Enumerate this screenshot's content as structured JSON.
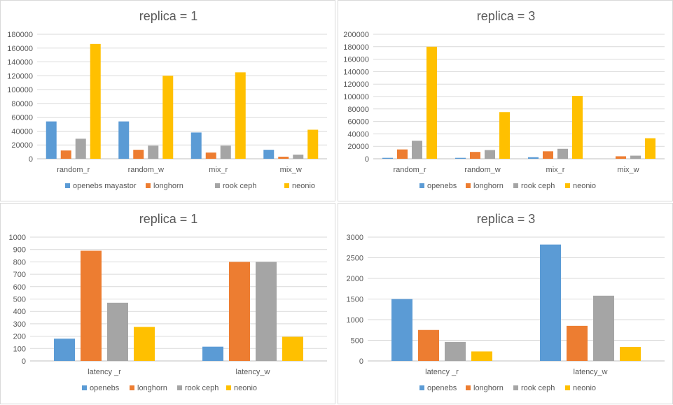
{
  "chart_data": [
    {
      "type": "bar",
      "title": "replica = 1",
      "categories": [
        "random_r",
        "random_w",
        "mix_r",
        "mix_w"
      ],
      "series": [
        {
          "name": "openebs mayastor",
          "color": "#5b9bd5",
          "values": [
            54000,
            54000,
            38000,
            13000
          ]
        },
        {
          "name": "longhorn",
          "color": "#ed7d31",
          "values": [
            12000,
            13000,
            9000,
            3000
          ]
        },
        {
          "name": "rook ceph",
          "color": "#a5a5a5",
          "values": [
            29000,
            19000,
            19000,
            6000
          ]
        },
        {
          "name": "neonio",
          "color": "#ffc000",
          "values": [
            166000,
            120000,
            125000,
            42000
          ]
        }
      ],
      "yticks": [
        "0",
        "20000",
        "40000",
        "60000",
        "80000",
        "100000",
        "120000",
        "140000",
        "160000",
        "180000"
      ],
      "ylim": [
        0,
        180000
      ],
      "xlabel": "",
      "ylabel": "",
      "legend": "bottom"
    },
    {
      "type": "bar",
      "title": "replica = 3",
      "categories": [
        "random_r",
        "random_w",
        "mix_r",
        "mix_w"
      ],
      "series": [
        {
          "name": "openebs",
          "color": "#5b9bd5",
          "values": [
            1500,
            1500,
            2500,
            0
          ]
        },
        {
          "name": "longhorn",
          "color": "#ed7d31",
          "values": [
            15000,
            11000,
            12000,
            4000
          ]
        },
        {
          "name": "rook ceph",
          "color": "#a5a5a5",
          "values": [
            29000,
            14000,
            16000,
            5000
          ]
        },
        {
          "name": "neonio",
          "color": "#ffc000",
          "values": [
            180000,
            75000,
            101000,
            33000
          ]
        }
      ],
      "yticks": [
        "0",
        "20000",
        "40000",
        "60000",
        "80000",
        "100000",
        "120000",
        "140000",
        "160000",
        "180000",
        "200000"
      ],
      "ylim": [
        0,
        200000
      ],
      "xlabel": "",
      "ylabel": "",
      "legend": "bottom"
    },
    {
      "type": "bar",
      "title": "replica = 1",
      "categories": [
        "latency _r",
        "latency_w"
      ],
      "series": [
        {
          "name": "openebs",
          "color": "#5b9bd5",
          "values": [
            180,
            115
          ]
        },
        {
          "name": "longhorn",
          "color": "#ed7d31",
          "values": [
            890,
            800
          ]
        },
        {
          "name": "rook ceph",
          "color": "#a5a5a5",
          "values": [
            470,
            800
          ]
        },
        {
          "name": "neonio",
          "color": "#ffc000",
          "values": [
            275,
            195
          ]
        }
      ],
      "yticks": [
        "0",
        "100",
        "200",
        "300",
        "400",
        "500",
        "600",
        "700",
        "800",
        "900",
        "1000"
      ],
      "ylim": [
        0,
        1000
      ],
      "xlabel": "",
      "ylabel": "",
      "legend": "bottom"
    },
    {
      "type": "bar",
      "title": "replica = 3",
      "categories": [
        "latency _r",
        "latency_w"
      ],
      "series": [
        {
          "name": "openebs",
          "color": "#5b9bd5",
          "values": [
            1500,
            2820
          ]
        },
        {
          "name": "longhorn",
          "color": "#ed7d31",
          "values": [
            750,
            850
          ]
        },
        {
          "name": "rook ceph",
          "color": "#a5a5a5",
          "values": [
            460,
            1580
          ]
        },
        {
          "name": "neonio",
          "color": "#ffc000",
          "values": [
            230,
            340
          ]
        }
      ],
      "yticks": [
        "0",
        "500",
        "1000",
        "1500",
        "2000",
        "2500",
        "3000"
      ],
      "ylim": [
        0,
        3000
      ],
      "xlabel": "",
      "ylabel": "",
      "legend": "bottom"
    }
  ]
}
